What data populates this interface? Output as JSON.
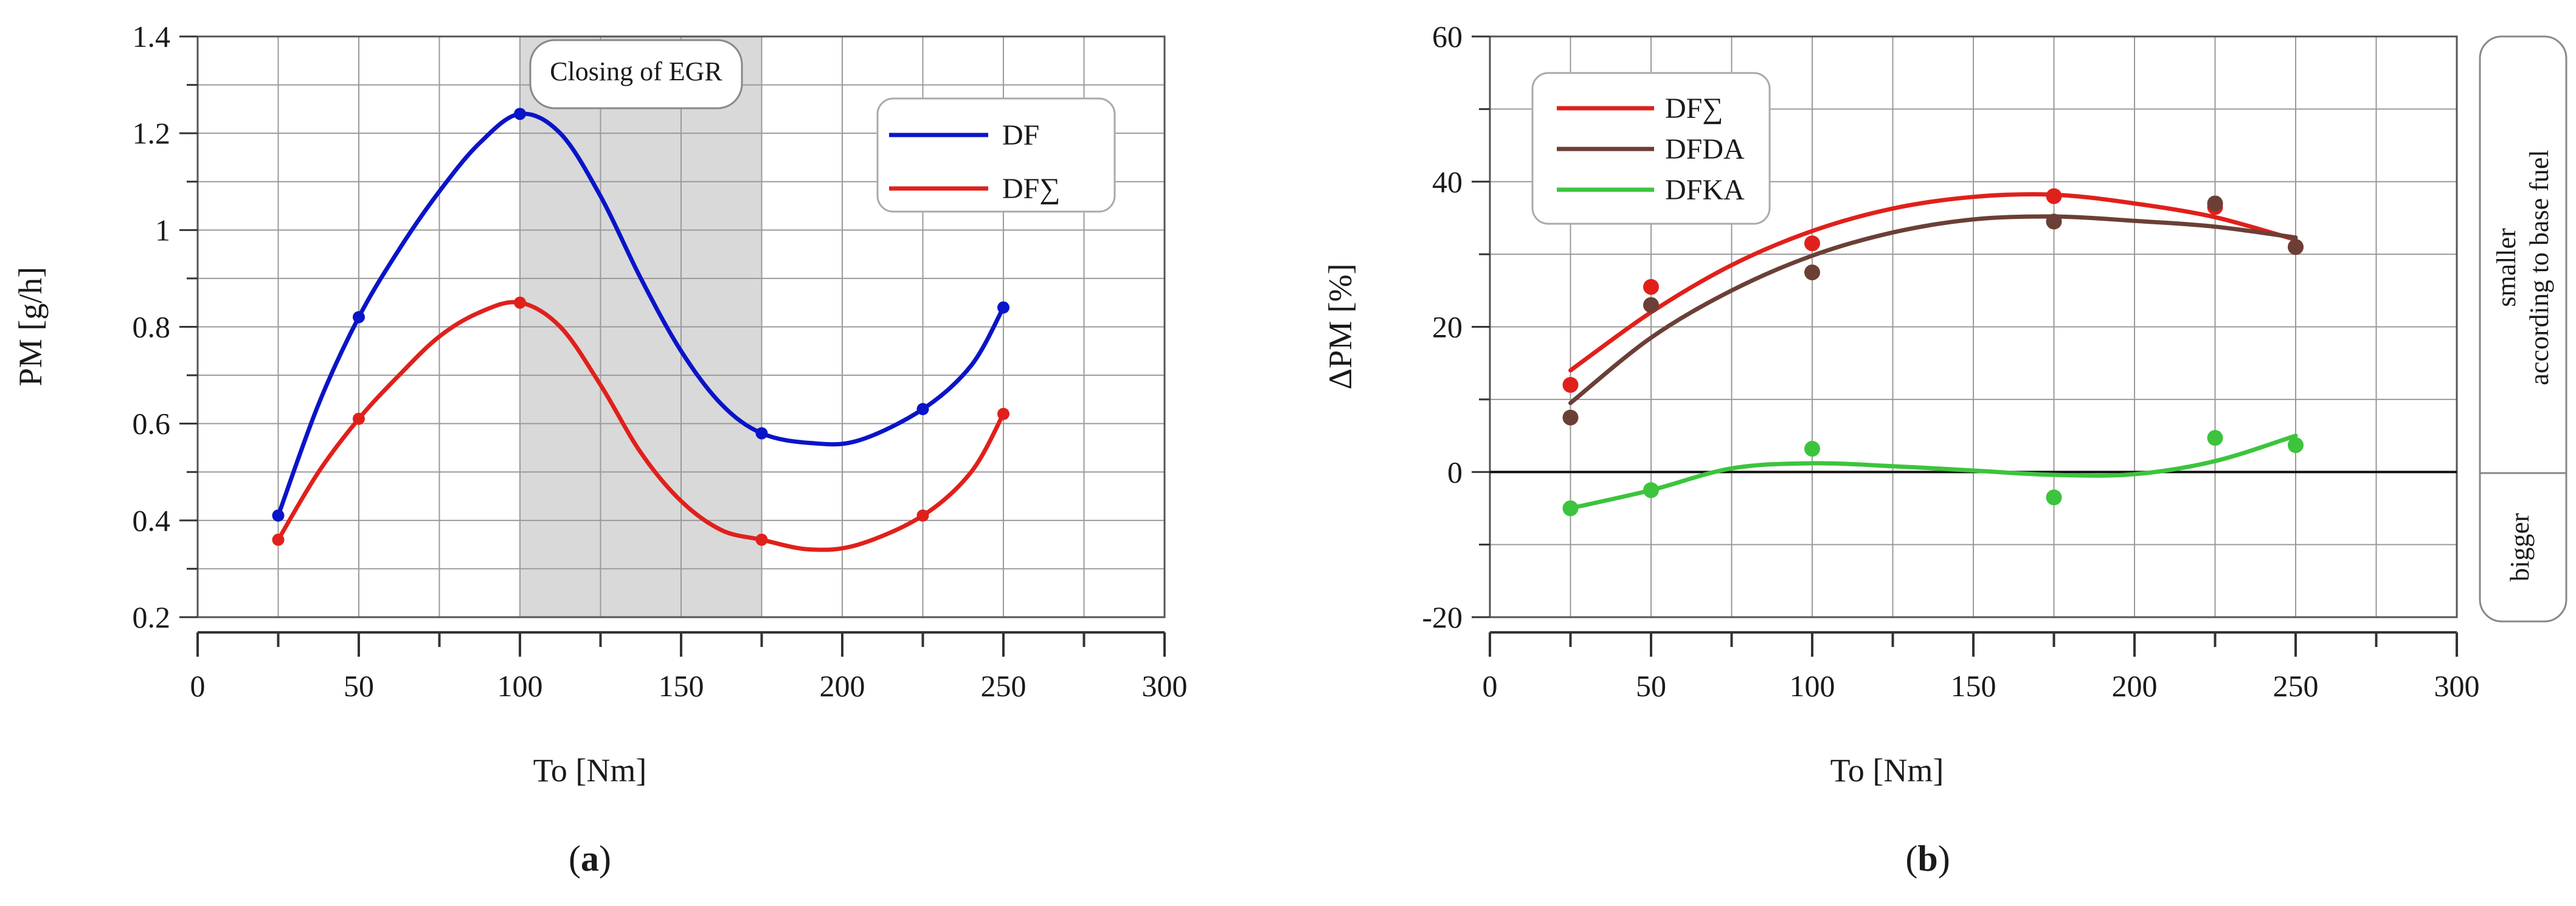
{
  "figure_labels": {
    "a": "a",
    "b": "b"
  },
  "chart_data": [
    {
      "type": "line",
      "panel": "a",
      "xlabel": "To [Nm]",
      "ylabel": "PM [g/h]",
      "xlim": [
        0,
        300
      ],
      "ylim": [
        0.2,
        1.4
      ],
      "xticks": [
        0,
        50,
        100,
        150,
        200,
        250,
        300
      ],
      "yticks": [
        0.2,
        0.4,
        0.6,
        0.8,
        1,
        1.2,
        1.4
      ],
      "xtick_labels": [
        "0",
        "50",
        "100",
        "150",
        "200",
        "250",
        "300"
      ],
      "ytick_labels": [
        "0.2",
        "0.4",
        "0.6",
        "0.8",
        "1",
        "1.2",
        "1.4"
      ],
      "grid": true,
      "shaded_region": {
        "x": [
          100,
          175
        ],
        "label": "Closing of EGR",
        "color": "#d9d9d9"
      },
      "legend_position": "top-right",
      "series": [
        {
          "name": "DF",
          "color": "#0a14c8",
          "x": [
            25,
            50,
            100,
            175,
            225,
            250
          ],
          "values": [
            0.41,
            0.82,
            1.24,
            0.58,
            0.63,
            0.84
          ],
          "curve_x": [
            25,
            37.5,
            50,
            62.5,
            75,
            87.5,
            100,
            112.5,
            125,
            137.5,
            150,
            162.5,
            175,
            190,
            205,
            225,
            240,
            250
          ],
          "curve_y": [
            0.41,
            0.64,
            0.82,
            0.96,
            1.08,
            1.18,
            1.24,
            1.2,
            1.07,
            0.9,
            0.75,
            0.64,
            0.58,
            0.56,
            0.565,
            0.63,
            0.72,
            0.84
          ]
        },
        {
          "name": "DF∑",
          "color": "#e0201b",
          "x": [
            25,
            50,
            100,
            175,
            225,
            250
          ],
          "values": [
            0.36,
            0.61,
            0.85,
            0.36,
            0.41,
            0.62
          ],
          "curve_x": [
            25,
            37.5,
            50,
            62.5,
            75,
            87.5,
            100,
            112.5,
            125,
            137.5,
            150,
            162.5,
            175,
            190,
            205,
            225,
            240,
            250
          ],
          "curve_y": [
            0.36,
            0.5,
            0.61,
            0.7,
            0.78,
            0.83,
            0.85,
            0.8,
            0.68,
            0.54,
            0.44,
            0.38,
            0.36,
            0.34,
            0.35,
            0.41,
            0.5,
            0.62
          ]
        }
      ]
    },
    {
      "type": "scatter",
      "panel": "b",
      "xlabel": "To [Nm]",
      "ylabel": "ΔPM [%]",
      "xlim": [
        0,
        300
      ],
      "ylim": [
        -20,
        60
      ],
      "xticks": [
        0,
        50,
        100,
        150,
        200,
        250,
        300
      ],
      "yticks": [
        -20,
        0,
        20,
        40,
        60
      ],
      "xtick_labels": [
        "0",
        "50",
        "100",
        "150",
        "200",
        "250",
        "300"
      ],
      "ytick_labels": [
        "-20",
        "0",
        "20",
        "40",
        "60"
      ],
      "grid": true,
      "zero_line": true,
      "legend_position": "top-left",
      "side_labels": {
        "top": "smaller",
        "top2": "according to base fuel",
        "bottom": "bigger"
      },
      "series": [
        {
          "name": "DF∑",
          "color": "#e0201b",
          "x": [
            25,
            50,
            100,
            175,
            225,
            250
          ],
          "values": [
            12,
            25.5,
            31.5,
            38,
            36.5,
            31
          ],
          "fit_x": [
            25,
            50,
            75,
            100,
            125,
            150,
            175,
            200,
            225,
            250
          ],
          "fit_y": [
            14,
            22,
            28.5,
            33.2,
            36.3,
            37.9,
            38.2,
            37,
            35.1,
            32
          ]
        },
        {
          "name": "DFDA",
          "color": "#6b3f36",
          "x": [
            25,
            50,
            100,
            175,
            225,
            250
          ],
          "values": [
            7.5,
            23,
            27.5,
            34.5,
            37,
            31
          ],
          "fit_x": [
            25,
            50,
            75,
            100,
            125,
            150,
            175,
            200,
            225,
            250
          ],
          "fit_y": [
            9.5,
            18.5,
            25,
            29.8,
            33,
            34.8,
            35.2,
            34.6,
            33.8,
            32.3
          ]
        },
        {
          "name": "DFKA",
          "color": "#3cc43c",
          "x": [
            25,
            50,
            100,
            175,
            225,
            250
          ],
          "values": [
            -5,
            -2.5,
            3.2,
            -3.5,
            4.7,
            3.7
          ],
          "fit_x": [
            25,
            50,
            75,
            100,
            125,
            150,
            175,
            200,
            225,
            250
          ],
          "fit_y": [
            -5,
            -2.5,
            0.5,
            1.2,
            0.8,
            0.2,
            -0.4,
            -0.3,
            1.5,
            5
          ]
        }
      ]
    }
  ]
}
